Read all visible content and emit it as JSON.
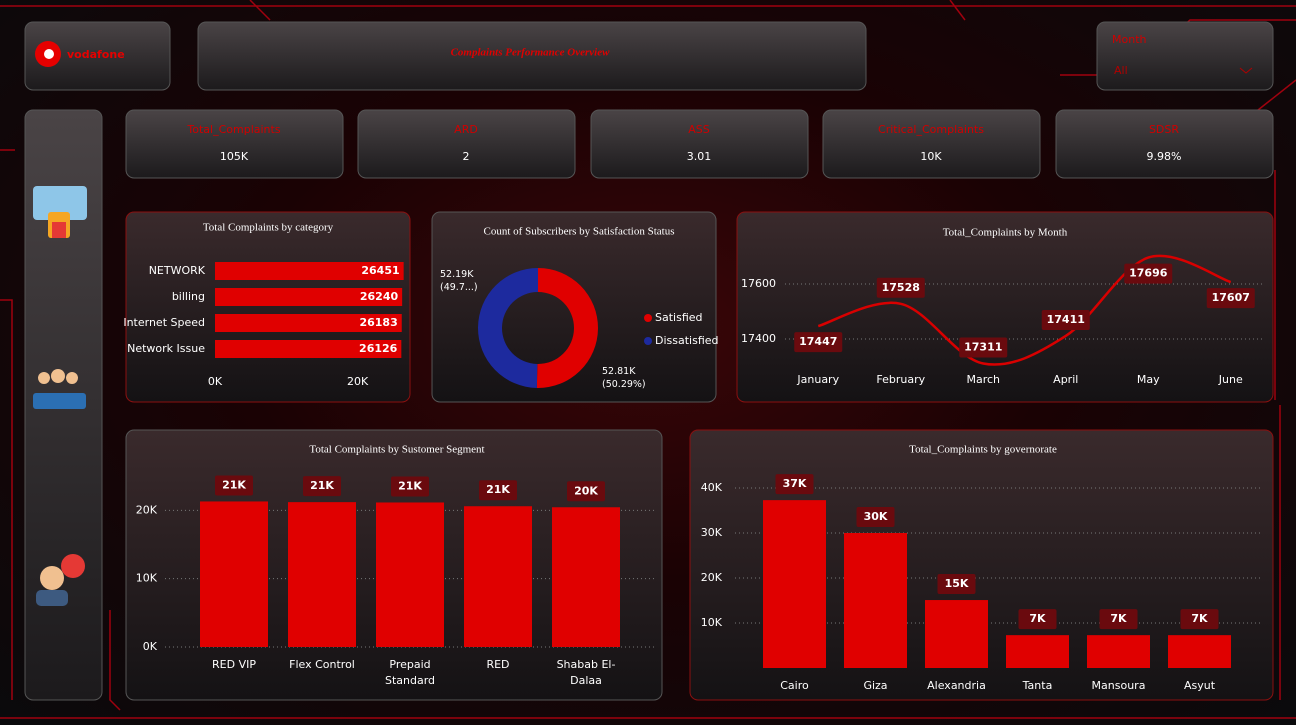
{
  "header": {
    "brand": "vodafone",
    "title": "Complaints Performance Overview"
  },
  "slicer": {
    "label": "Month",
    "value": "All"
  },
  "kpis": [
    {
      "label": "Total_Complaints",
      "value": "105K"
    },
    {
      "label": "ARD",
      "value": "2"
    },
    {
      "label": "ASS",
      "value": "3.01"
    },
    {
      "label": "Critical_Complaints",
      "value": "10K"
    },
    {
      "label": "SDSR",
      "value": "9.98%"
    }
  ],
  "chart_data": [
    {
      "type": "hbar",
      "title": "Total Complaints by category",
      "categories": [
        "NETWORK",
        "billing",
        "Internet Speed",
        "Network Issue"
      ],
      "values": [
        26451,
        26240,
        26183,
        26126
      ],
      "color": "#e00000",
      "xlim": [
        0,
        26500
      ],
      "xticks": [
        {
          "value": 0,
          "label": "0K"
        },
        {
          "value": 20000,
          "label": "20K"
        }
      ]
    },
    {
      "type": "donut",
      "title": "Count of Subscribers by Satisfaction Status",
      "categories": [
        "Satisfied",
        "Dissatisfied"
      ],
      "values": [
        52810,
        52190
      ],
      "value_labels": [
        "52.81K (50.29%)",
        "52.19K (49.7...)"
      ],
      "colors": [
        "#e00000",
        "#1d2a9e"
      ]
    },
    {
      "type": "line",
      "title": "Total_Complaints by Month",
      "categories": [
        "January",
        "February",
        "March",
        "April",
        "May",
        "June"
      ],
      "values": [
        17447,
        17528,
        17311,
        17411,
        17696,
        17607
      ],
      "color": "#d80000",
      "ylim": [
        17300,
        17700
      ],
      "yticks": [
        17400,
        17600
      ],
      "grid": true
    },
    {
      "type": "bar",
      "title": "Total Complaints by Sustomer Segment",
      "categories": [
        "RED VIP",
        "Flex Control",
        "Prepaid Standard",
        "RED",
        "Shabab El-Dalaa"
      ],
      "values": [
        21300,
        21200,
        21150,
        20600,
        20450
      ],
      "value_labels": [
        "21K",
        "21K",
        "21K",
        "21K",
        "20K"
      ],
      "color": "#e00000",
      "ylim": [
        0,
        24000
      ],
      "yticks": [
        {
          "value": 0,
          "label": "0K"
        },
        {
          "value": 10000,
          "label": "10K"
        },
        {
          "value": 20000,
          "label": "20K"
        }
      ],
      "grid": true
    },
    {
      "type": "bar",
      "title": "Total_Complaints by governorate",
      "categories": [
        "Cairo",
        "Giza",
        "Alexandria",
        "Tanta",
        "Mansoura",
        "Asyut"
      ],
      "values": [
        37300,
        30000,
        15100,
        7300,
        7300,
        7300
      ],
      "value_labels": [
        "37K",
        "30K",
        "15K",
        "7K",
        "7K",
        "7K"
      ],
      "color": "#e00000",
      "ylim": [
        0,
        42000
      ],
      "yticks": [
        {
          "value": 10000,
          "label": "10K"
        },
        {
          "value": 20000,
          "label": "20K"
        },
        {
          "value": 30000,
          "label": "30K"
        },
        {
          "value": 40000,
          "label": "40K"
        }
      ],
      "grid": true
    }
  ]
}
